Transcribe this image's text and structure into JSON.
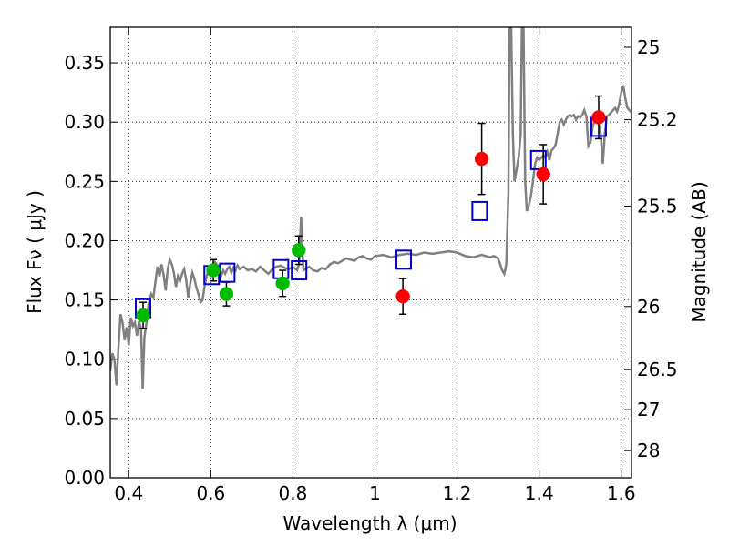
{
  "chart_data": {
    "type": "scatter",
    "xlabel": "Wavelength  λ (μm)",
    "ylabel": "Flux  Fν  ( μJy )",
    "ylabel_right": "Magnitude (AB)",
    "xlim": [
      0.355,
      1.625
    ],
    "ylim": [
      0.0,
      0.38
    ],
    "grid": true,
    "x_ticks": [
      0.4,
      0.6,
      0.8,
      1.0,
      1.2,
      1.4,
      1.6
    ],
    "x_tick_labels": [
      "0.4",
      "0.6",
      "0.8",
      "1",
      "1.2",
      "1.4",
      "1.6"
    ],
    "y_ticks": [
      0.0,
      0.05,
      0.1,
      0.15,
      0.2,
      0.25,
      0.3,
      0.35
    ],
    "y_tick_labels": [
      "0.00",
      "0.05",
      "0.10",
      "0.15",
      "0.20",
      "0.25",
      "0.30",
      "0.35"
    ],
    "right_ticks": [
      {
        "label": "25",
        "flux": 0.3631
      },
      {
        "label": "25.2",
        "flux": 0.302
      },
      {
        "label": "25.5",
        "flux": 0.2291
      },
      {
        "label": "26",
        "flux": 0.1445
      },
      {
        "label": "26.5",
        "flux": 0.0912
      },
      {
        "label": "27",
        "flux": 0.0575
      },
      {
        "label": "28",
        "flux": 0.0229
      }
    ],
    "series": [
      {
        "marker": "circle",
        "color": "#00bb00",
        "points": [
          {
            "x": 0.435,
            "y": 0.137,
            "err": 0.011
          },
          {
            "x": 0.606,
            "y": 0.175,
            "err": 0.009
          },
          {
            "x": 0.638,
            "y": 0.155,
            "err": 0.01
          },
          {
            "x": 0.775,
            "y": 0.164,
            "err": 0.011
          },
          {
            "x": 0.814,
            "y": 0.192,
            "err": 0.012
          }
        ]
      },
      {
        "marker": "circle",
        "color": "#ff0000",
        "points": [
          {
            "x": 1.068,
            "y": 0.153,
            "err": 0.015
          },
          {
            "x": 1.26,
            "y": 0.269,
            "err": 0.03
          },
          {
            "x": 1.41,
            "y": 0.256,
            "err": 0.025
          },
          {
            "x": 1.545,
            "y": 0.304,
            "err": 0.018
          }
        ]
      },
      {
        "marker": "open-square",
        "color": "#0000cc",
        "points": [
          {
            "x": 0.435,
            "y": 0.143
          },
          {
            "x": 0.602,
            "y": 0.171
          },
          {
            "x": 0.64,
            "y": 0.173
          },
          {
            "x": 0.771,
            "y": 0.176
          },
          {
            "x": 0.815,
            "y": 0.175
          },
          {
            "x": 1.07,
            "y": 0.184
          },
          {
            "x": 1.255,
            "y": 0.225
          },
          {
            "x": 1.398,
            "y": 0.268
          },
          {
            "x": 1.545,
            "y": 0.296
          }
        ]
      },
      {
        "marker": "line",
        "color": "#808080",
        "points": [
          [
            0.355,
            0.09
          ],
          [
            0.36,
            0.105
          ],
          [
            0.365,
            0.1
          ],
          [
            0.37,
            0.078
          ],
          [
            0.375,
            0.11
          ],
          [
            0.38,
            0.138
          ],
          [
            0.385,
            0.131
          ],
          [
            0.39,
            0.116
          ],
          [
            0.395,
            0.127
          ],
          [
            0.4,
            0.112
          ],
          [
            0.405,
            0.135
          ],
          [
            0.41,
            0.128
          ],
          [
            0.415,
            0.131
          ],
          [
            0.42,
            0.12
          ],
          [
            0.425,
            0.132
          ],
          [
            0.43,
            0.126
          ],
          [
            0.434,
            0.075
          ],
          [
            0.438,
            0.118
          ],
          [
            0.443,
            0.13
          ],
          [
            0.448,
            0.146
          ],
          [
            0.455,
            0.155
          ],
          [
            0.46,
            0.152
          ],
          [
            0.465,
            0.165
          ],
          [
            0.47,
            0.178
          ],
          [
            0.475,
            0.17
          ],
          [
            0.48,
            0.18
          ],
          [
            0.485,
            0.171
          ],
          [
            0.49,
            0.158
          ],
          [
            0.495,
            0.176
          ],
          [
            0.5,
            0.184
          ],
          [
            0.505,
            0.18
          ],
          [
            0.51,
            0.173
          ],
          [
            0.515,
            0.161
          ],
          [
            0.52,
            0.17
          ],
          [
            0.525,
            0.166
          ],
          [
            0.53,
            0.172
          ],
          [
            0.535,
            0.176
          ],
          [
            0.54,
            0.167
          ],
          [
            0.545,
            0.152
          ],
          [
            0.55,
            0.164
          ],
          [
            0.555,
            0.173
          ],
          [
            0.56,
            0.168
          ],
          [
            0.565,
            0.16
          ],
          [
            0.57,
            0.155
          ],
          [
            0.575,
            0.148
          ],
          [
            0.58,
            0.15
          ],
          [
            0.585,
            0.162
          ],
          [
            0.59,
            0.17
          ],
          [
            0.595,
            0.176
          ],
          [
            0.6,
            0.172
          ],
          [
            0.605,
            0.178
          ],
          [
            0.61,
            0.182
          ],
          [
            0.615,
            0.18
          ],
          [
            0.62,
            0.176
          ],
          [
            0.625,
            0.17
          ],
          [
            0.63,
            0.175
          ],
          [
            0.635,
            0.172
          ],
          [
            0.64,
            0.176
          ],
          [
            0.645,
            0.178
          ],
          [
            0.65,
            0.173
          ],
          [
            0.655,
            0.177
          ],
          [
            0.66,
            0.175
          ],
          [
            0.665,
            0.179
          ],
          [
            0.67,
            0.176
          ],
          [
            0.68,
            0.178
          ],
          [
            0.69,
            0.175
          ],
          [
            0.7,
            0.176
          ],
          [
            0.71,
            0.174
          ],
          [
            0.72,
            0.178
          ],
          [
            0.73,
            0.175
          ],
          [
            0.74,
            0.172
          ],
          [
            0.75,
            0.176
          ],
          [
            0.76,
            0.178
          ],
          [
            0.77,
            0.179
          ],
          [
            0.78,
            0.177
          ],
          [
            0.79,
            0.176
          ],
          [
            0.8,
            0.178
          ],
          [
            0.81,
            0.175
          ],
          [
            0.815,
            0.18
          ],
          [
            0.82,
            0.22
          ],
          [
            0.823,
            0.19
          ],
          [
            0.826,
            0.175
          ],
          [
            0.83,
            0.176
          ],
          [
            0.84,
            0.178
          ],
          [
            0.85,
            0.175
          ],
          [
            0.86,
            0.174
          ],
          [
            0.87,
            0.177
          ],
          [
            0.88,
            0.176
          ],
          [
            0.89,
            0.18
          ],
          [
            0.9,
            0.182
          ],
          [
            0.91,
            0.181
          ],
          [
            0.92,
            0.183
          ],
          [
            0.93,
            0.185
          ],
          [
            0.94,
            0.184
          ],
          [
            0.95,
            0.183
          ],
          [
            0.96,
            0.186
          ],
          [
            0.97,
            0.187
          ],
          [
            0.98,
            0.185
          ],
          [
            0.99,
            0.184
          ],
          [
            1.0,
            0.187
          ],
          [
            1.02,
            0.188
          ],
          [
            1.04,
            0.186
          ],
          [
            1.06,
            0.188
          ],
          [
            1.08,
            0.189
          ],
          [
            1.1,
            0.188
          ],
          [
            1.12,
            0.19
          ],
          [
            1.14,
            0.189
          ],
          [
            1.16,
            0.19
          ],
          [
            1.18,
            0.191
          ],
          [
            1.2,
            0.19
          ],
          [
            1.22,
            0.187
          ],
          [
            1.24,
            0.186
          ],
          [
            1.26,
            0.188
          ],
          [
            1.28,
            0.186
          ],
          [
            1.29,
            0.187
          ],
          [
            1.3,
            0.185
          ],
          [
            1.305,
            0.18
          ],
          [
            1.31,
            0.175
          ],
          [
            1.315,
            0.172
          ],
          [
            1.32,
            0.18
          ],
          [
            1.325,
            0.24
          ],
          [
            1.328,
            0.38
          ],
          [
            1.332,
            0.38
          ],
          [
            1.336,
            0.29
          ],
          [
            1.34,
            0.25
          ],
          [
            1.345,
            0.26
          ],
          [
            1.35,
            0.27
          ],
          [
            1.355,
            0.29
          ],
          [
            1.358,
            0.38
          ],
          [
            1.362,
            0.38
          ],
          [
            1.366,
            0.25
          ],
          [
            1.37,
            0.225
          ],
          [
            1.375,
            0.23
          ],
          [
            1.38,
            0.238
          ],
          [
            1.385,
            0.25
          ],
          [
            1.39,
            0.265
          ],
          [
            1.395,
            0.27
          ],
          [
            1.4,
            0.268
          ],
          [
            1.41,
            0.272
          ],
          [
            1.415,
            0.27
          ],
          [
            1.42,
            0.275
          ],
          [
            1.425,
            0.268
          ],
          [
            1.43,
            0.276
          ],
          [
            1.435,
            0.278
          ],
          [
            1.44,
            0.281
          ],
          [
            1.445,
            0.29
          ],
          [
            1.45,
            0.3
          ],
          [
            1.455,
            0.302
          ],
          [
            1.46,
            0.298
          ],
          [
            1.465,
            0.302
          ],
          [
            1.47,
            0.305
          ],
          [
            1.475,
            0.306
          ],
          [
            1.48,
            0.305
          ],
          [
            1.485,
            0.306
          ],
          [
            1.49,
            0.302
          ],
          [
            1.495,
            0.305
          ],
          [
            1.5,
            0.304
          ],
          [
            1.505,
            0.306
          ],
          [
            1.51,
            0.31
          ],
          [
            1.515,
            0.305
          ],
          [
            1.52,
            0.28
          ],
          [
            1.525,
            0.283
          ],
          [
            1.53,
            0.295
          ],
          [
            1.535,
            0.302
          ],
          [
            1.54,
            0.304
          ],
          [
            1.545,
            0.298
          ],
          [
            1.55,
            0.29
          ],
          [
            1.555,
            0.265
          ],
          [
            1.56,
            0.29
          ],
          [
            1.565,
            0.305
          ],
          [
            1.57,
            0.306
          ],
          [
            1.575,
            0.308
          ],
          [
            1.58,
            0.31
          ],
          [
            1.585,
            0.312
          ],
          [
            1.59,
            0.309
          ],
          [
            1.595,
            0.315
          ],
          [
            1.6,
            0.325
          ],
          [
            1.605,
            0.331
          ],
          [
            1.61,
            0.32
          ],
          [
            1.615,
            0.312
          ],
          [
            1.62,
            0.31
          ],
          [
            1.625,
            0.308
          ]
        ]
      }
    ]
  }
}
